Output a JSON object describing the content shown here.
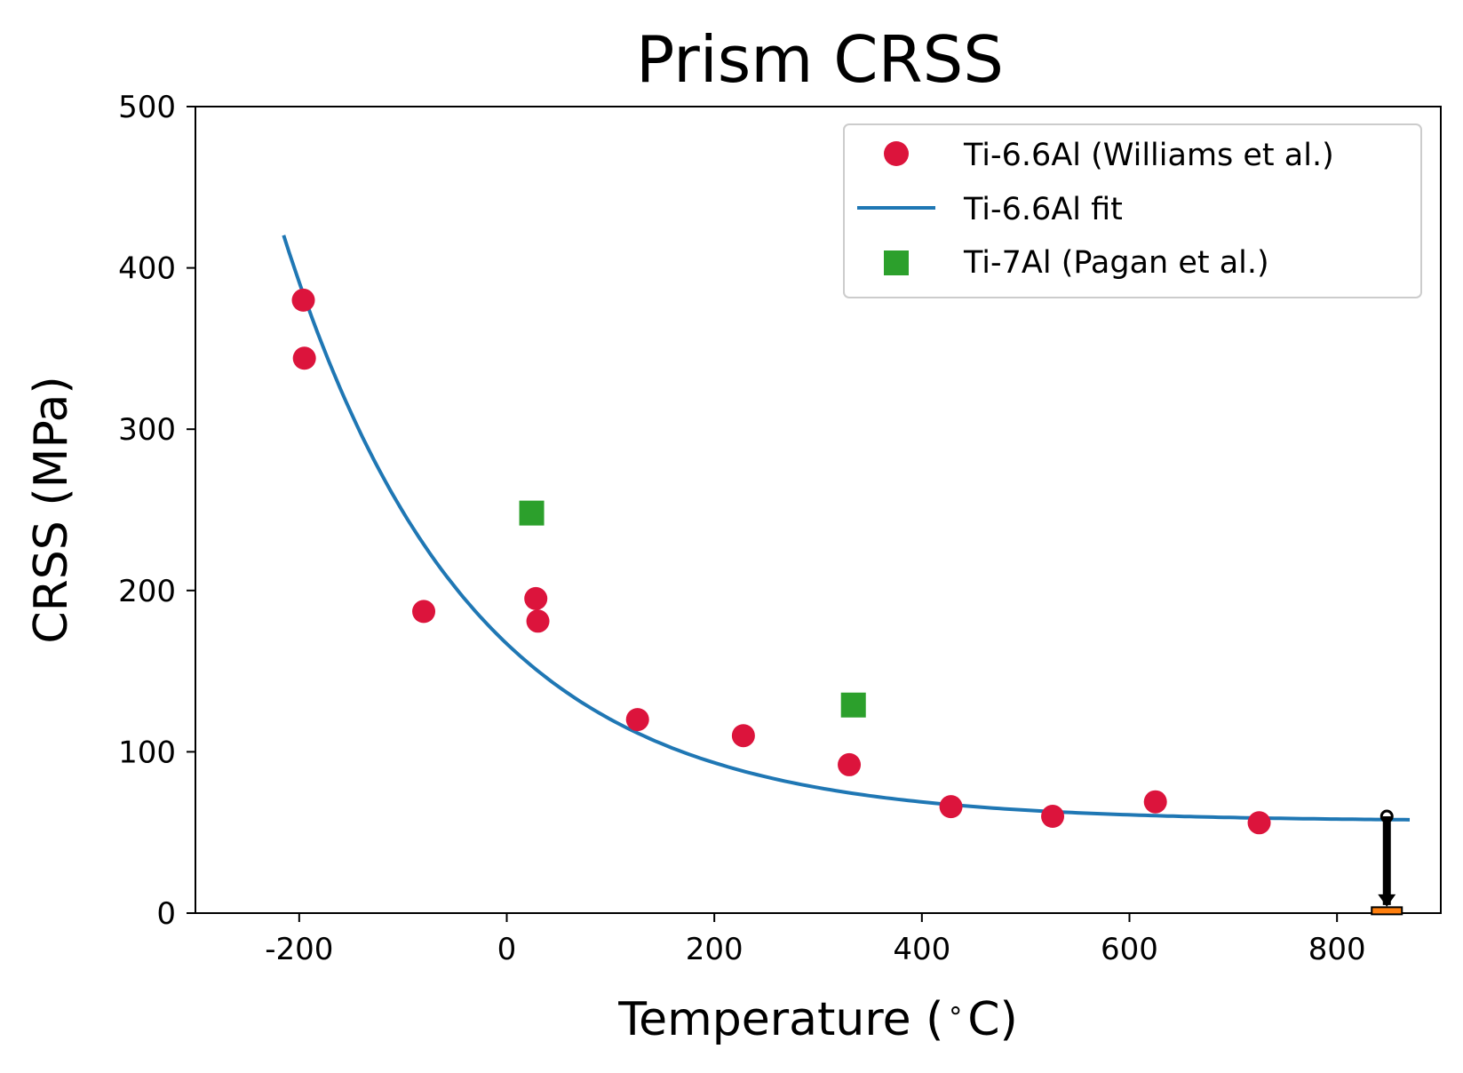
{
  "chart_data": {
    "type": "scatter",
    "title": "Prism CRSS",
    "xlabel": "Temperature ($^\\circ$C)",
    "xlabel_parts": {
      "prefix": "Temperature (",
      "degree": "∘",
      "suffix": "C)"
    },
    "ylabel": "CRSS (MPa)",
    "xlim": [
      -300,
      900
    ],
    "ylim": [
      0,
      500
    ],
    "xticks": [
      -200,
      0,
      200,
      400,
      600,
      800
    ],
    "xtick_labels": [
      "-200",
      "0",
      "200",
      "400",
      "600",
      "800"
    ],
    "yticks": [
      0,
      100,
      200,
      300,
      400,
      500
    ],
    "ytick_labels": [
      "0",
      "100",
      "200",
      "300",
      "400",
      "500"
    ],
    "grid": false,
    "legend_position": "top-right",
    "series": [
      {
        "name": "Ti-6.6Al (Williams et al.)",
        "kind": "scatter",
        "marker": "circle",
        "color": "#dc143c",
        "x": [
          -196,
          -195,
          -80,
          28,
          30,
          126,
          228,
          330,
          428,
          526,
          625,
          725
        ],
        "y": [
          380,
          344,
          187,
          195,
          181,
          120,
          110,
          92,
          66,
          60,
          69,
          56
        ]
      },
      {
        "name": "Ti-6.6Al fit",
        "kind": "line",
        "color": "#1f77b4",
        "model": {
          "form": "a*exp(-x/b)+c",
          "a": 110.0,
          "b": 180.0,
          "c": 57.0
        },
        "x_range": [
          -215,
          870
        ]
      },
      {
        "name": "Ti-7Al (Pagan et al.)",
        "kind": "scatter",
        "marker": "square",
        "color": "#2ca02c",
        "x": [
          24,
          334
        ],
        "y": [
          248,
          129
        ]
      },
      {
        "name": "upper limit",
        "kind": "arrow",
        "color": "#000000",
        "x": 848,
        "y_from": 60,
        "y_to": 5
      },
      {
        "name": "marker",
        "kind": "bar-marker",
        "color": "#ff7f0e",
        "x": 848,
        "y": 2
      }
    ]
  }
}
